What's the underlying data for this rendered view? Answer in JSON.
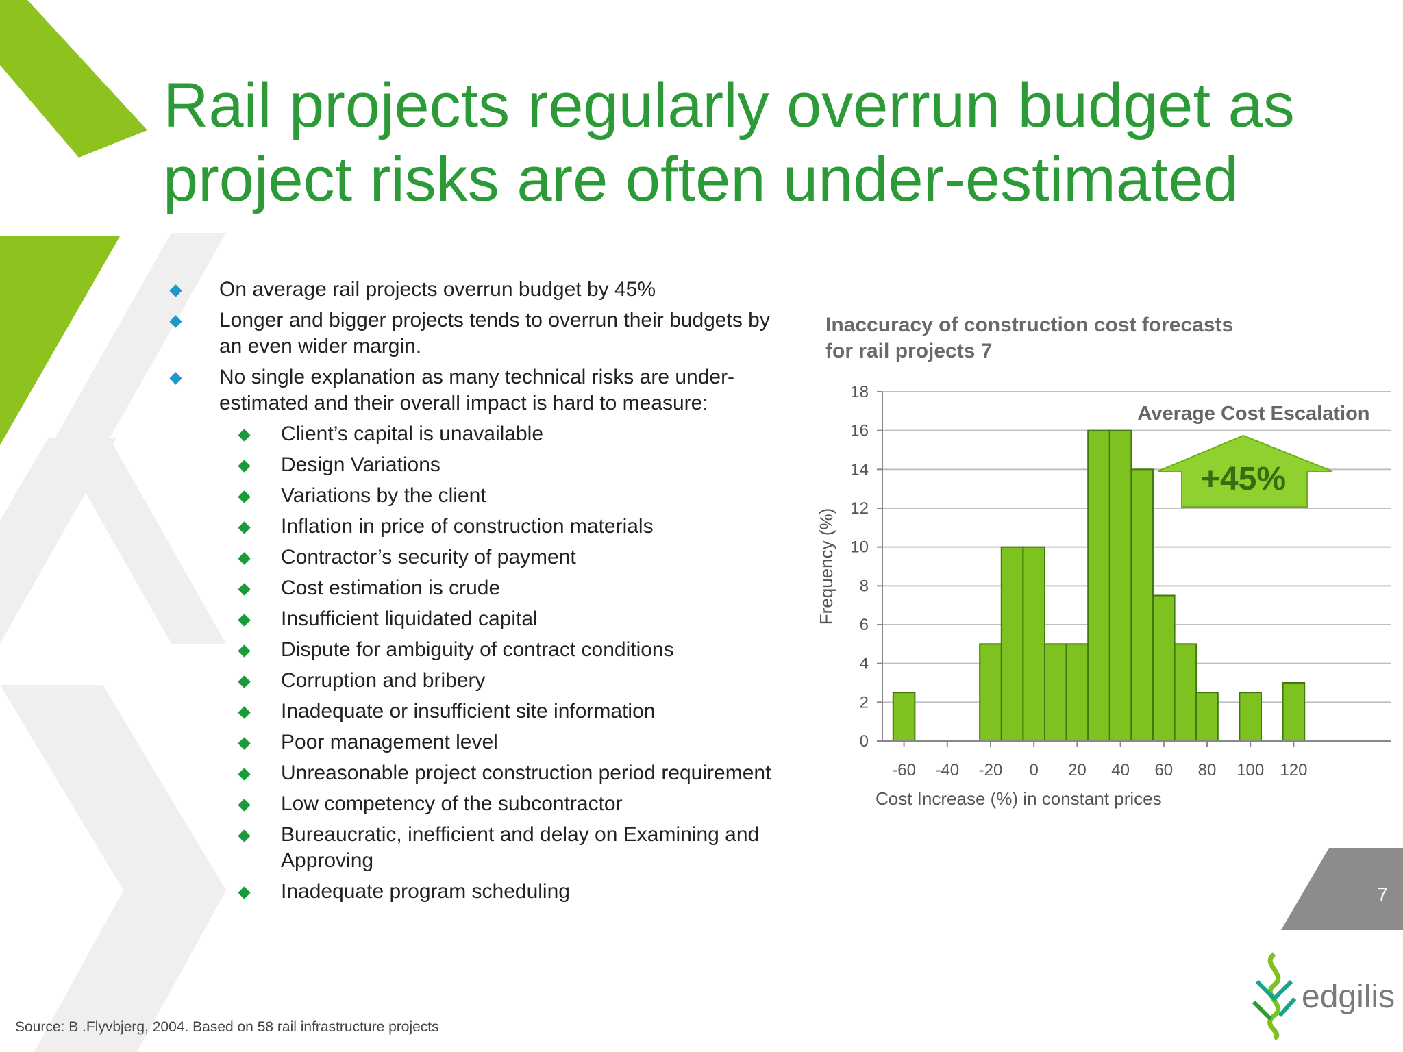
{
  "slide": {
    "title_lines": [
      "Rail projects regularly overrun budget as",
      "project risks are often under-estimated"
    ],
    "page_number": "7",
    "source": "Source: B .Flyvbjerg, 2004. Based on 58 rail infrastructure projects",
    "logo_text": "edgilis"
  },
  "bullets": [
    {
      "text": "On average rail projects overrun  budget by 45%"
    },
    {
      "text": "Longer and bigger projects tends to overrun their budgets by an even wider margin."
    },
    {
      "text": "No single explanation as many technical risks are under-estimated and their overall impact is hard to measure:",
      "sub": [
        "Client’s capital is unavailable",
        "Design Variations",
        "Variations by the client",
        "Inflation in price of construction materials",
        "Contractor’s security of payment",
        "Cost estimation is crude",
        "Insufficient liquidated capital",
        "Dispute for ambiguity of contract conditions",
        "Corruption and bribery",
        "Inadequate or insufficient site information",
        "Poor management level",
        "Unreasonable project construction period requirement",
        "Low competency of the subcontractor",
        "Bureaucratic, inefficient and delay on Examining and Approving",
        "Inadequate program scheduling"
      ]
    }
  ],
  "chart_data": {
    "type": "bar",
    "title": "Inaccuracy of construction cost forecasts for rail projects 7",
    "xlabel": "Cost Increase (%) in constant prices",
    "ylabel": "Frequency (%)",
    "x_ticks": [
      "-60",
      "-40",
      "-20",
      "0",
      "20",
      "40",
      "60",
      "80",
      "100",
      "120"
    ],
    "y_ticks": [
      "0",
      "2",
      "4",
      "6",
      "8",
      "10",
      "12",
      "14",
      "16",
      "18"
    ],
    "xlim": [
      -70,
      130
    ],
    "ylim": [
      0,
      18
    ],
    "bar_width": 10,
    "bar_x": [
      -60,
      -50,
      -40,
      -30,
      -20,
      -10,
      0,
      10,
      20,
      30,
      40,
      50,
      60,
      70,
      80,
      90,
      100,
      110,
      120
    ],
    "values": [
      2.5,
      0,
      0,
      0,
      5,
      10,
      10,
      5,
      5,
      16,
      16,
      14,
      7.5,
      5,
      2.5,
      0,
      2.5,
      0,
      3
    ],
    "grid": true,
    "annotation": {
      "label": "Average Cost Escalation",
      "value": "+45%"
    },
    "colors": {
      "bar": "#7dc21e",
      "bar_edge": "#3f7a10",
      "arrow": "#8fd12e"
    }
  }
}
